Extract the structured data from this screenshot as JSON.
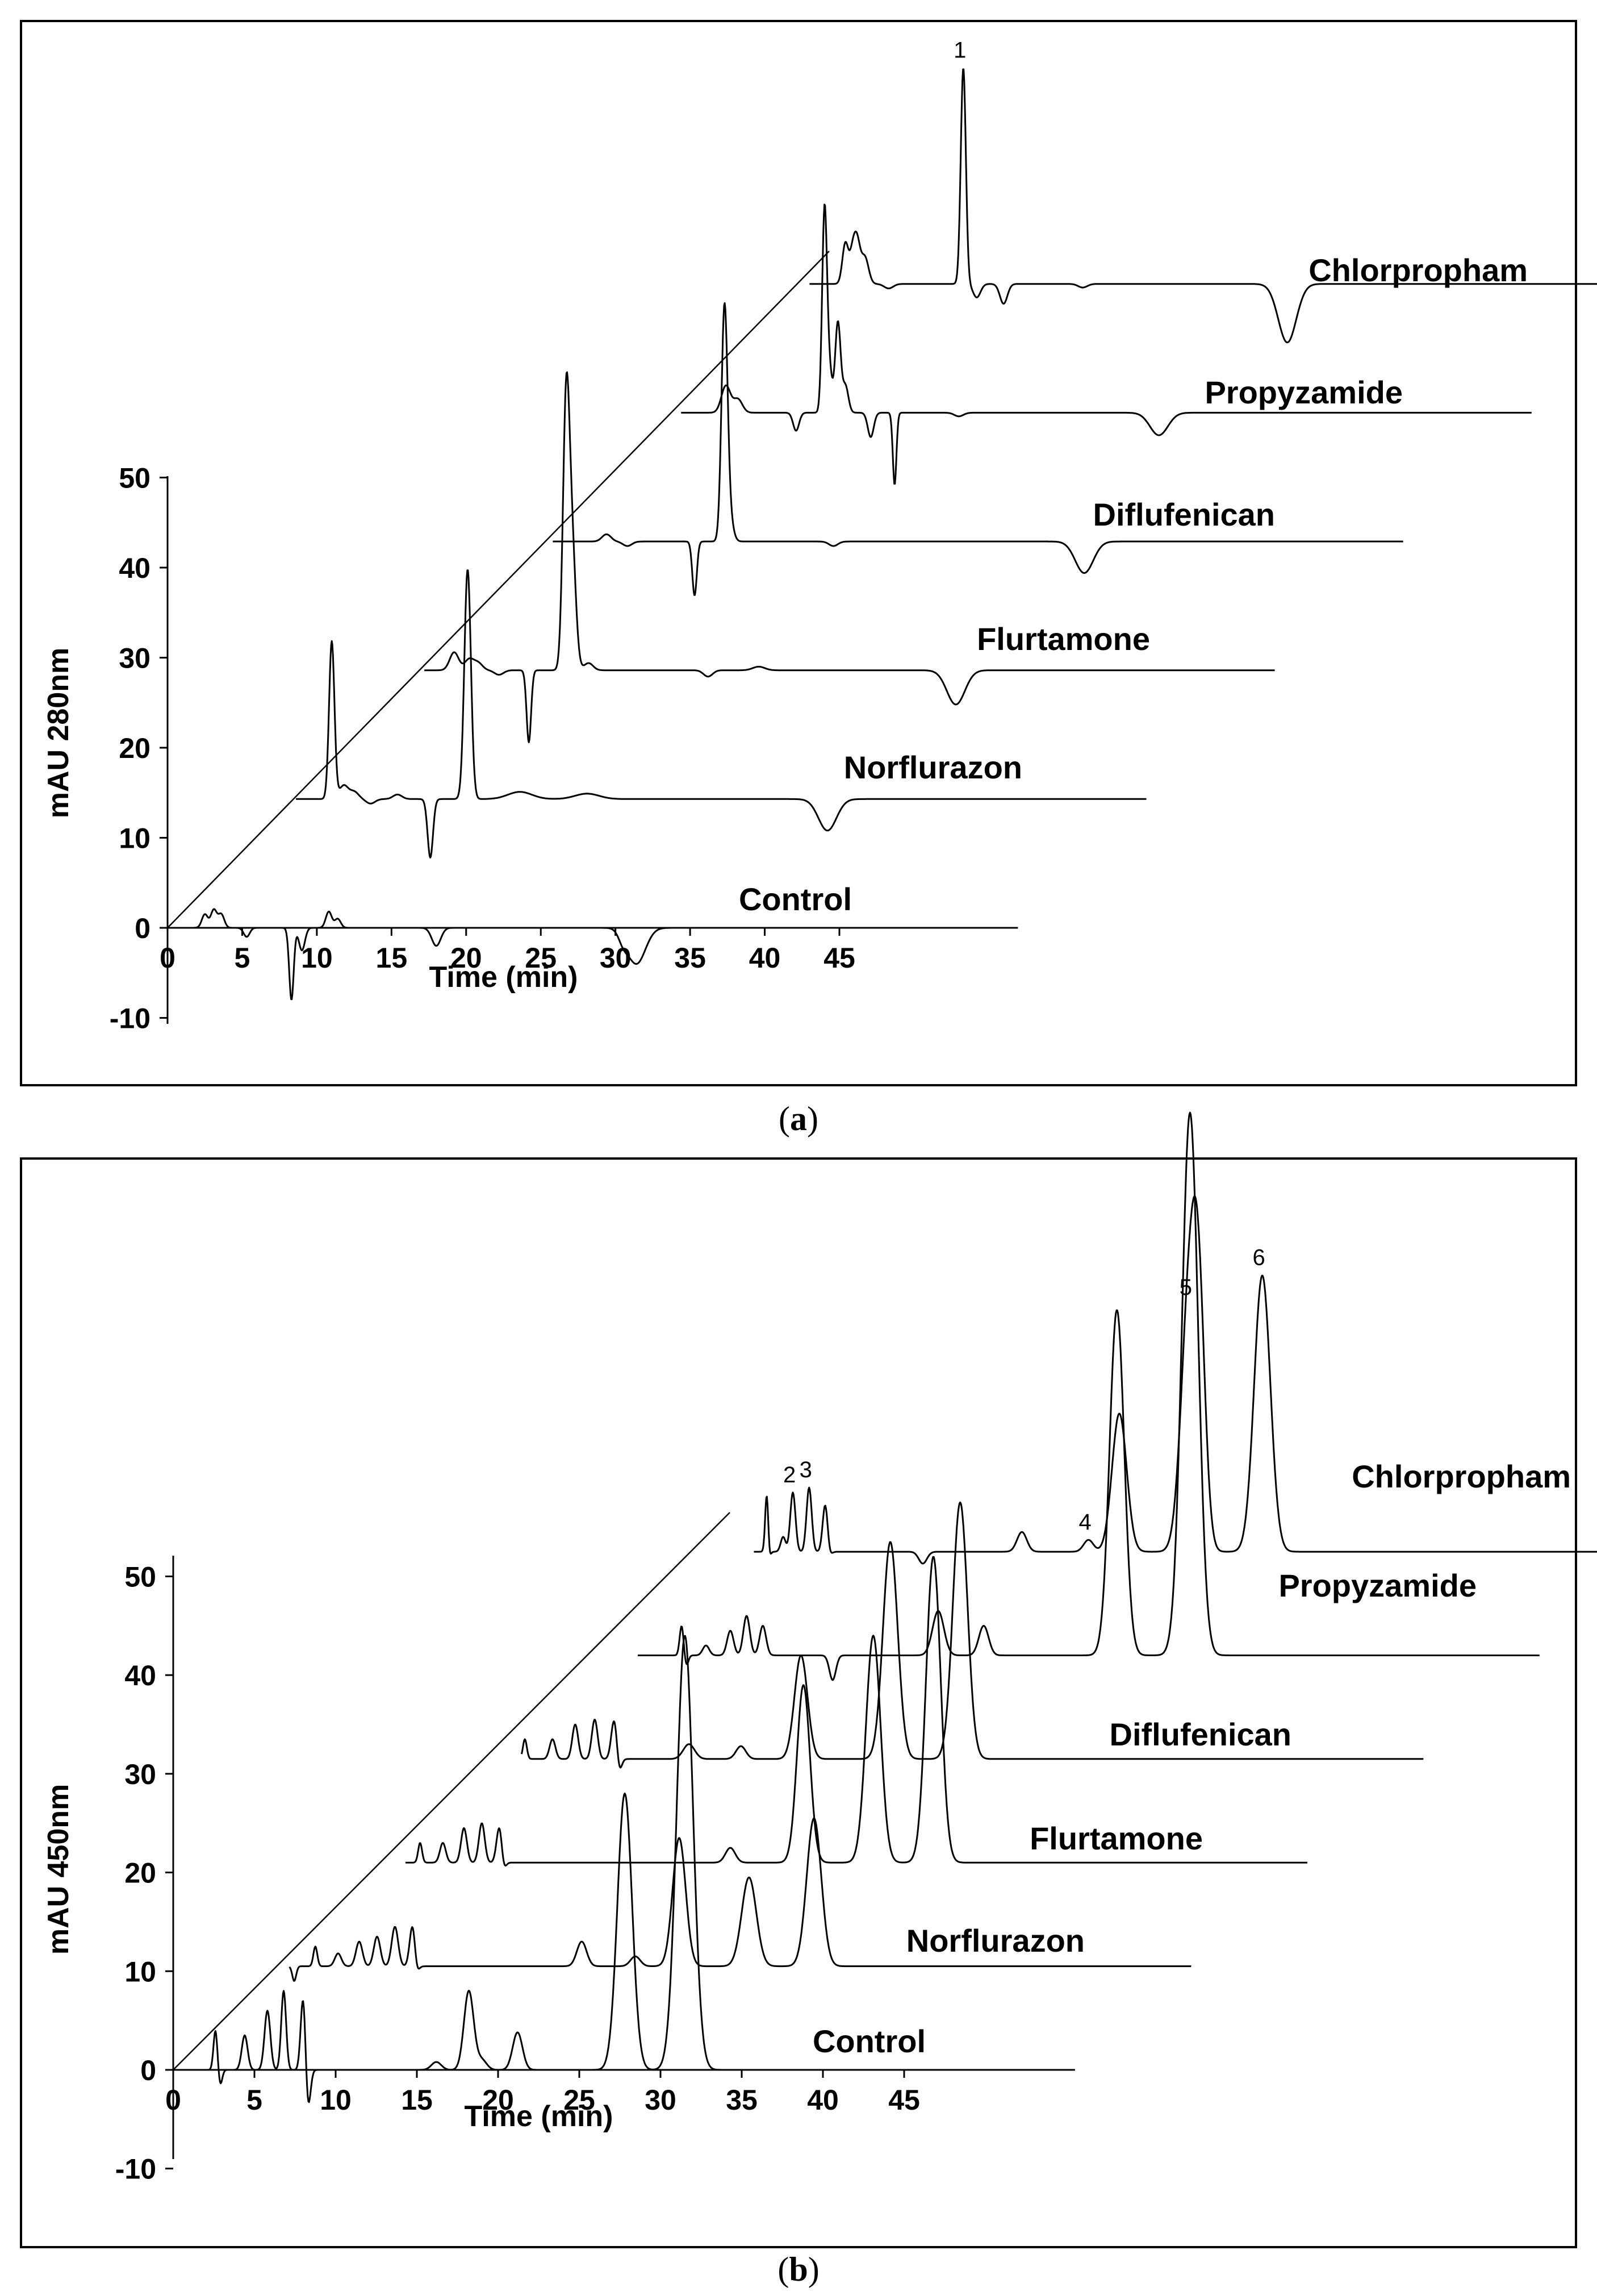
{
  "figure": {
    "panels": [
      {
        "id": "a",
        "caption_open": "(",
        "caption_letter": "a",
        "caption_close": ")"
      },
      {
        "id": "b",
        "caption_open": "(",
        "caption_letter": "b",
        "caption_close": ")"
      }
    ]
  },
  "chart_data": [
    {
      "type": "line",
      "panel": "a",
      "title": "",
      "xlabel": "Time (min)",
      "ylabel": "mAU 280nm",
      "xlim": [
        0,
        45
      ],
      "ylim": [
        -10,
        50
      ],
      "x_ticks": [
        "0",
        "5",
        "10",
        "15",
        "20",
        "25",
        "30",
        "35",
        "40",
        "45"
      ],
      "y_ticks": [
        "-10",
        "0",
        "10",
        "20",
        "30",
        "40",
        "50"
      ],
      "stack_offset_per_trace": {
        "x_min": 8.6,
        "y_mAU": 14.3
      },
      "peak_labels": [
        {
          "label": "1",
          "trace": "Chlorpropham",
          "time_min": 10.3,
          "height_mAU": 24
        }
      ],
      "series": [
        {
          "name": "Control",
          "offset_index": 0,
          "peaks": [
            [
              2.5,
              1.5,
              0.2
            ],
            [
              3.1,
              2.0,
              0.2
            ],
            [
              3.6,
              1.5,
              0.2
            ],
            [
              5.3,
              -1.0,
              0.2
            ],
            [
              8.3,
              -8.0,
              0.15
            ],
            [
              9.0,
              -2.5,
              0.2
            ],
            [
              10.8,
              1.8,
              0.2
            ],
            [
              11.4,
              1.0,
              0.2
            ],
            [
              18.0,
              -2.0,
              0.3
            ],
            [
              30.5,
              -1.0,
              0.3
            ],
            [
              31.4,
              -4.0,
              0.6
            ]
          ]
        },
        {
          "name": "Norflurazon",
          "offset_index": 1,
          "peaks": [
            [
              2.4,
              17.5,
              0.18
            ],
            [
              3.2,
              1.5,
              0.3
            ],
            [
              3.9,
              0.8,
              0.3
            ],
            [
              5.0,
              -0.5,
              0.3
            ],
            [
              6.8,
              0.5,
              0.3
            ],
            [
              9.0,
              -6.5,
              0.18
            ],
            [
              11.5,
              25.5,
              0.22
            ],
            [
              15.0,
              0.8,
              0.8
            ],
            [
              19.5,
              0.6,
              0.8
            ],
            [
              35.6,
              -3.5,
              0.6
            ]
          ]
        },
        {
          "name": "Flurtamone",
          "offset_index": 2,
          "peaks": [
            [
              2.0,
              2.0,
              0.3
            ],
            [
              3.0,
              1.2,
              0.3
            ],
            [
              3.6,
              0.8,
              0.3
            ],
            [
              5.0,
              -0.5,
              0.3
            ],
            [
              7.0,
              -8.0,
              0.15
            ],
            [
              9.5,
              29.0,
              0.22
            ],
            [
              9.9,
              13.0,
              0.25
            ],
            [
              11.0,
              0.8,
              0.3
            ],
            [
              19.0,
              -0.7,
              0.3
            ],
            [
              22.4,
              0.4,
              0.4
            ],
            [
              35.6,
              -3.8,
              0.6
            ]
          ]
        },
        {
          "name": "Diflufenican",
          "offset_index": 3,
          "peaks": [
            [
              3.6,
              0.8,
              0.3
            ],
            [
              5.0,
              -0.5,
              0.3
            ],
            [
              9.5,
              -6.0,
              0.15
            ],
            [
              11.5,
              25.0,
              0.2
            ],
            [
              11.8,
              3.0,
              0.25
            ],
            [
              18.8,
              -0.5,
              0.3
            ],
            [
              35.6,
              -3.5,
              0.6
            ]
          ]
        },
        {
          "name": "Propyzamide",
          "offset_index": 4,
          "peaks": [
            [
              3.0,
              3.0,
              0.3
            ],
            [
              3.8,
              1.5,
              0.3
            ],
            [
              7.7,
              -2.0,
              0.2
            ],
            [
              9.6,
              21.5,
              0.16
            ],
            [
              9.9,
              5.0,
              0.2
            ],
            [
              10.5,
              10.0,
              0.18
            ],
            [
              11.0,
              3.0,
              0.2
            ],
            [
              12.7,
              -2.7,
              0.2
            ],
            [
              14.3,
              -8.0,
              0.12
            ],
            [
              18.6,
              -0.4,
              0.3
            ],
            [
              32.0,
              -2.5,
              0.6
            ]
          ]
        },
        {
          "name": "Chlorpropham",
          "offset_index": 5,
          "peaks": [
            [
              2.4,
              4.5,
              0.2
            ],
            [
              2.9,
              3.5,
              0.2
            ],
            [
              3.2,
              4.0,
              0.2
            ],
            [
              3.7,
              3.0,
              0.25
            ],
            [
              5.3,
              -0.5,
              0.3
            ],
            [
              10.3,
              24.0,
              0.17
            ],
            [
              11.2,
              -1.5,
              0.25
            ],
            [
              13.0,
              -2.2,
              0.25
            ],
            [
              18.3,
              -0.4,
              0.3
            ],
            [
              32.0,
              -6.5,
              0.6
            ]
          ]
        }
      ],
      "trace_labels": [
        "Control",
        "Norflurazon",
        "Flurtamone",
        "Diflufenican",
        "Propyzamide",
        "Chlorpropham"
      ]
    },
    {
      "type": "line",
      "panel": "b",
      "title": "",
      "xlabel": "Time (min)",
      "ylabel": "mAU 450nm",
      "xlim": [
        0,
        45
      ],
      "ylim": [
        -10,
        50
      ],
      "x_ticks": [
        "0",
        "5",
        "10",
        "15",
        "20",
        "25",
        "30",
        "35",
        "40",
        "45"
      ],
      "y_ticks": [
        "-10",
        "0",
        "10",
        "20",
        "30",
        "40",
        "50"
      ],
      "stack_offset_per_trace": {
        "x_min": 7.15,
        "y_mAU": 10.5
      },
      "peak_labels": [
        {
          "label": "2",
          "trace": "Chlorpropham",
          "time_min": 2.4,
          "height_mAU": 6
        },
        {
          "label": "3",
          "trace": "Chlorpropham",
          "time_min": 3.4,
          "height_mAU": 6.5
        },
        {
          "label": "4",
          "trace": "Chlorpropham",
          "time_min": 20.6,
          "height_mAU": 1.2
        },
        {
          "label": "5",
          "trace": "Chlorpropham",
          "time_min": 26.8,
          "height_mAU": 25
        },
        {
          "label": "6",
          "trace": "Chlorpropham",
          "time_min": 31.3,
          "height_mAU": 28
        }
      ],
      "series": [
        {
          "name": "Control",
          "offset_index": 0,
          "peaks": [
            [
              2.6,
              4.0,
              0.12
            ],
            [
              2.9,
              -1.5,
              0.12
            ],
            [
              4.4,
              3.5,
              0.18
            ],
            [
              5.8,
              6.0,
              0.18
            ],
            [
              6.8,
              8.0,
              0.15
            ],
            [
              8.0,
              7.5,
              0.15
            ],
            [
              8.3,
              -4.0,
              0.15
            ],
            [
              16.2,
              0.8,
              0.3
            ],
            [
              18.2,
              8.0,
              0.3
            ],
            [
              19.0,
              1.0,
              0.3
            ],
            [
              21.2,
              3.8,
              0.3
            ],
            [
              27.8,
              28.0,
              0.45
            ],
            [
              31.5,
              44.0,
              0.5
            ]
          ]
        },
        {
          "name": "Norflurazon",
          "offset_index": 1,
          "peaks": [
            [
              0.3,
              -1.5,
              0.12
            ],
            [
              1.6,
              2.0,
              0.12
            ],
            [
              3.0,
              1.3,
              0.2
            ],
            [
              4.3,
              2.5,
              0.2
            ],
            [
              5.4,
              3.0,
              0.2
            ],
            [
              6.5,
              4.0,
              0.2
            ],
            [
              7.6,
              4.5,
              0.18
            ],
            [
              7.8,
              -1.5,
              0.15
            ],
            [
              18.0,
              2.5,
              0.3
            ],
            [
              21.3,
              1.0,
              0.3
            ],
            [
              24.0,
              13.0,
              0.4
            ],
            [
              28.3,
              9.0,
              0.45
            ],
            [
              32.3,
              15.0,
              0.45
            ]
          ]
        },
        {
          "name": "Flurtamone",
          "offset_index": 2,
          "peaks": [
            [
              0.9,
              2.0,
              0.12
            ],
            [
              2.3,
              2.0,
              0.18
            ],
            [
              3.6,
              3.5,
              0.18
            ],
            [
              4.7,
              4.0,
              0.18
            ],
            [
              5.8,
              4.0,
              0.18
            ],
            [
              6.0,
              -1.5,
              0.15
            ],
            [
              20.0,
              1.5,
              0.3
            ],
            [
              24.5,
              18.0,
              0.4
            ],
            [
              28.8,
              23.0,
              0.45
            ],
            [
              32.5,
              31.0,
              0.45
            ]
          ]
        },
        {
          "name": "Diflufenican",
          "offset_index": 3,
          "peaks": [
            [
              0.2,
              2.0,
              0.12
            ],
            [
              1.9,
              2.0,
              0.18
            ],
            [
              3.3,
              3.5,
              0.18
            ],
            [
              4.5,
              4.0,
              0.18
            ],
            [
              5.7,
              4.0,
              0.18
            ],
            [
              6.0,
              -1.5,
              0.15
            ],
            [
              10.3,
              1.5,
              0.35
            ],
            [
              13.5,
              1.3,
              0.3
            ],
            [
              17.2,
              10.5,
              0.4
            ],
            [
              22.7,
              22.0,
              0.45
            ],
            [
              27.0,
              26.0,
              0.45
            ]
          ]
        },
        {
          "name": "Propyzamide",
          "offset_index": 4,
          "peaks": [
            [
              2.7,
              3.0,
              0.12
            ],
            [
              3.0,
              -1.0,
              0.12
            ],
            [
              4.2,
              1.0,
              0.2
            ],
            [
              5.7,
              2.5,
              0.2
            ],
            [
              6.7,
              4.0,
              0.2
            ],
            [
              7.7,
              3.0,
              0.2
            ],
            [
              12.0,
              -2.5,
              0.2
            ],
            [
              18.5,
              4.5,
              0.35
            ],
            [
              21.3,
              3.0,
              0.3
            ],
            [
              29.5,
              35.0,
              0.45
            ],
            [
              34.0,
              55.0,
              0.5
            ]
          ]
        },
        {
          "name": "Chlorpropham",
          "offset_index": 5,
          "peaks": [
            [
              0.8,
              6.5,
              0.1
            ],
            [
              0.9,
              -1.5,
              0.1
            ],
            [
              1.8,
              1.5,
              0.15
            ],
            [
              2.4,
              6.0,
              0.16
            ],
            [
              3.4,
              6.5,
              0.16
            ],
            [
              4.4,
              5.0,
              0.16
            ],
            [
              4.6,
              -0.8,
              0.15
            ],
            [
              10.4,
              -1.2,
              0.25
            ],
            [
              16.5,
              2.0,
              0.3
            ],
            [
              20.6,
              1.2,
              0.3
            ],
            [
              22.5,
              14.0,
              0.45
            ],
            [
              26.8,
              25.0,
              0.5
            ],
            [
              27.4,
              20.0,
              0.4
            ],
            [
              31.3,
              28.0,
              0.5
            ]
          ]
        }
      ],
      "trace_labels": [
        "Control",
        "Norflurazon",
        "Flurtamone",
        "Diflufenican",
        "Propyzamide",
        "Chlorpropham"
      ]
    }
  ]
}
